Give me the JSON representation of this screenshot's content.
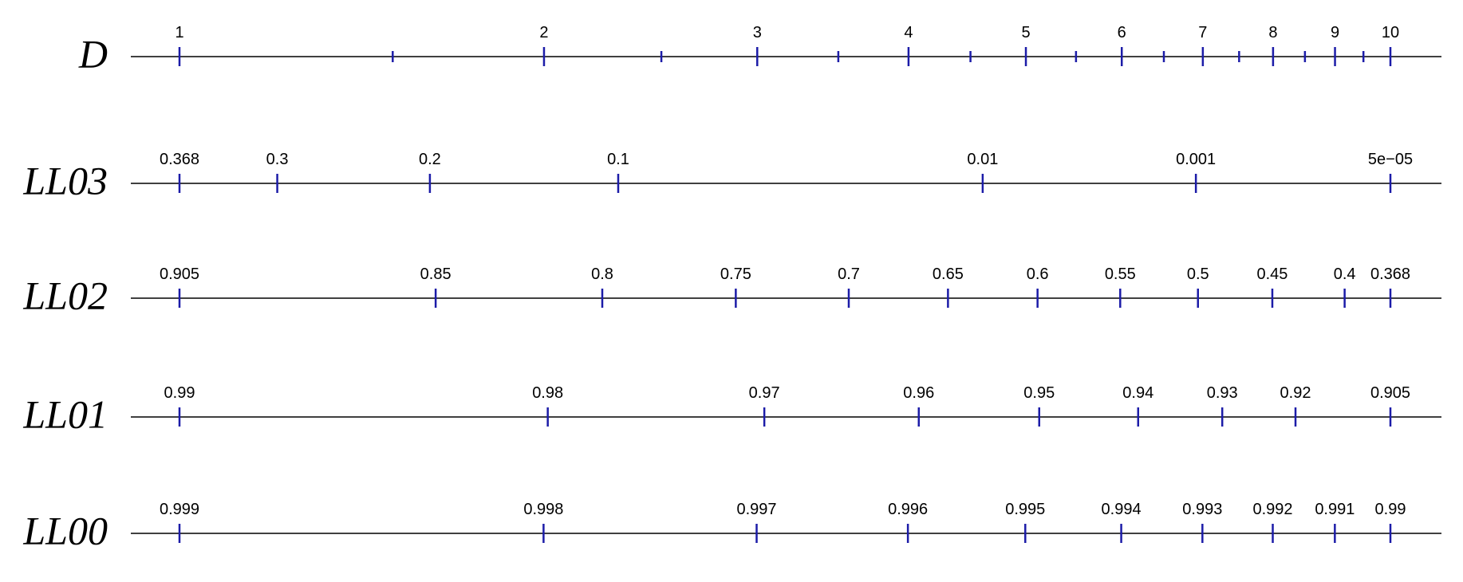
{
  "chart_data": [
    {
      "type": "scale",
      "title": "D",
      "scale": "log",
      "xlim": [
        1,
        10
      ],
      "xticks": [
        1,
        2,
        3,
        4,
        5,
        6,
        7,
        8,
        9,
        10
      ],
      "minor_ticks": [
        1.5,
        2.5,
        3.5,
        4.5,
        5.5,
        6.5,
        7.5,
        8.5,
        9.5
      ],
      "color": "#1c1ca8"
    },
    {
      "type": "scale",
      "title": "LL03",
      "scale": "loglog",
      "xlim": [
        0.368,
        4.54e-05
      ],
      "xticks": [
        0.368,
        0.3,
        0.2,
        0.1,
        0.01,
        0.001,
        {
          "value": 4.54e-05,
          "label": "5e−05"
        }
      ],
      "color": "#1c1ca8"
    },
    {
      "type": "scale",
      "title": "LL02",
      "scale": "loglog",
      "xlim": [
        0.905,
        0.368
      ],
      "xticks": [
        0.905,
        0.85,
        0.8,
        0.75,
        0.7,
        0.65,
        0.6,
        0.55,
        0.5,
        0.45,
        0.4,
        0.368
      ],
      "color": "#1c1ca8"
    },
    {
      "type": "scale",
      "title": "LL01",
      "scale": "loglog",
      "xlim": [
        0.99,
        0.905
      ],
      "xticks": [
        0.99,
        0.98,
        0.97,
        0.96,
        0.95,
        0.94,
        0.93,
        0.92,
        0.905
      ],
      "color": "#1c1ca8"
    },
    {
      "type": "scale",
      "title": "LL00",
      "scale": "loglog",
      "xlim": [
        0.999,
        0.99
      ],
      "xticks": [
        0.999,
        0.998,
        0.997,
        0.996,
        0.995,
        0.994,
        0.993,
        0.992,
        0.991,
        0.99
      ],
      "color": "#1c1ca8"
    }
  ]
}
